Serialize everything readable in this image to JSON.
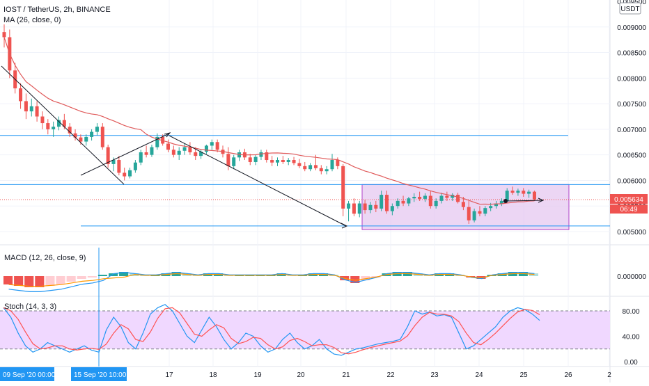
{
  "header": {
    "symbol_line": "IOST / TetherUS, 2h, BINANCE",
    "ma_line": "MA (26, close, 0)",
    "currency_badge": "USDT"
  },
  "price_axis": {
    "ticks": [
      "0.009500",
      "0.009000",
      "0.008500",
      "0.008000",
      "0.007500",
      "0.007000",
      "0.006500",
      "0.006000",
      "0.005500",
      "0.005000"
    ],
    "current_price": "0.005634",
    "countdown": "06:49"
  },
  "macd": {
    "label": "MACD (12, 26, close, 9)",
    "axis_tick": "0.000000"
  },
  "stoch": {
    "label": "Stoch (14, 3, 3)",
    "axis_ticks": [
      "80.00",
      "40.00",
      "0.00"
    ]
  },
  "time_axis": {
    "ticks": [
      "17",
      "18",
      "19",
      "20",
      "21",
      "22",
      "23",
      "24",
      "25",
      "26",
      "2"
    ],
    "cursor_labels": [
      "09 Sep '20   00:00",
      "15 Sep '20   10:00"
    ]
  },
  "colors": {
    "up": "#26a69a",
    "down": "#ef5350",
    "ma": "#e05a5a",
    "level_line": "#2196f3",
    "range_box_fill": "#e6c8f0",
    "range_box_stroke": "#b040c8",
    "stoch_band": "#f0d8ff"
  },
  "chart_data": {
    "type": "candlestick",
    "title": "IOST / TetherUS, 2h, BINANCE",
    "x_ticks": [
      "17",
      "18",
      "19",
      "20",
      "21",
      "22",
      "23",
      "24",
      "25",
      "26"
    ],
    "ylim": [
      0.0048,
      0.0095
    ],
    "horizontal_levels": [
      0.00688,
      0.00592,
      0.00511
    ],
    "range_box": {
      "from": "21",
      "to": "25",
      "low": 0.00504,
      "high": 0.00592
    },
    "candles": [
      [
        0.0089,
        0.00905,
        0.0086,
        0.0088
      ],
      [
        0.0088,
        0.00895,
        0.008,
        0.00815
      ],
      [
        0.00815,
        0.0083,
        0.0077,
        0.0078
      ],
      [
        0.0078,
        0.0079,
        0.0074,
        0.00755
      ],
      [
        0.00755,
        0.0077,
        0.0072,
        0.00735
      ],
      [
        0.00735,
        0.0076,
        0.00725,
        0.00745
      ],
      [
        0.00745,
        0.00755,
        0.00715,
        0.00725
      ],
      [
        0.00725,
        0.00735,
        0.007,
        0.00712
      ],
      [
        0.00712,
        0.0072,
        0.0069,
        0.007
      ],
      [
        0.007,
        0.00715,
        0.00685,
        0.00705
      ],
      [
        0.00705,
        0.00725,
        0.00698,
        0.00718
      ],
      [
        0.00718,
        0.0073,
        0.007,
        0.00705
      ],
      [
        0.00705,
        0.00712,
        0.00685,
        0.00692
      ],
      [
        0.00692,
        0.007,
        0.00678,
        0.00684
      ],
      [
        0.00684,
        0.0069,
        0.0067,
        0.00676
      ],
      [
        0.00676,
        0.0069,
        0.00668,
        0.00685
      ],
      [
        0.00685,
        0.007,
        0.00678,
        0.00695
      ],
      [
        0.00695,
        0.00712,
        0.00688,
        0.00705
      ],
      [
        0.00705,
        0.00712,
        0.0066,
        0.00665
      ],
      [
        0.00665,
        0.0067,
        0.00625,
        0.00632
      ],
      [
        0.00632,
        0.00645,
        0.00618,
        0.0064
      ],
      [
        0.0064,
        0.00648,
        0.0061,
        0.00615
      ],
      [
        0.00615,
        0.00625,
        0.006,
        0.00608
      ],
      [
        0.00608,
        0.00625,
        0.00604,
        0.0062
      ],
      [
        0.0062,
        0.0064,
        0.00615,
        0.00635
      ],
      [
        0.00635,
        0.0066,
        0.0063,
        0.00655
      ],
      [
        0.00655,
        0.00668,
        0.00645,
        0.0065
      ],
      [
        0.0065,
        0.0067,
        0.00646,
        0.00665
      ],
      [
        0.00665,
        0.00692,
        0.0066,
        0.00685
      ],
      [
        0.00685,
        0.0069,
        0.00668,
        0.00672
      ],
      [
        0.00672,
        0.0068,
        0.00655,
        0.0066
      ],
      [
        0.0066,
        0.00668,
        0.00645,
        0.0065
      ],
      [
        0.0065,
        0.00665,
        0.0064,
        0.00658
      ],
      [
        0.00658,
        0.00672,
        0.0065,
        0.00665
      ],
      [
        0.00665,
        0.00675,
        0.0065,
        0.00655
      ],
      [
        0.00655,
        0.00665,
        0.0064,
        0.00648
      ],
      [
        0.00648,
        0.0066,
        0.00642,
        0.00656
      ],
      [
        0.00656,
        0.0067,
        0.00652,
        0.00668
      ],
      [
        0.00668,
        0.0068,
        0.0066,
        0.00675
      ],
      [
        0.00675,
        0.0068,
        0.00655,
        0.0066
      ],
      [
        0.0066,
        0.00668,
        0.00645,
        0.00652
      ],
      [
        0.00652,
        0.00665,
        0.0062,
        0.00628
      ],
      [
        0.00628,
        0.0065,
        0.00622,
        0.00645
      ],
      [
        0.00645,
        0.0066,
        0.00638,
        0.00655
      ],
      [
        0.00655,
        0.00662,
        0.0064,
        0.00645
      ],
      [
        0.00645,
        0.00652,
        0.0063,
        0.00636
      ],
      [
        0.00636,
        0.0065,
        0.0063,
        0.00646
      ],
      [
        0.00646,
        0.0066,
        0.0064,
        0.00655
      ],
      [
        0.00655,
        0.0066,
        0.00635,
        0.0064
      ],
      [
        0.0064,
        0.00648,
        0.00628,
        0.00635
      ],
      [
        0.00635,
        0.00645,
        0.00628,
        0.0064
      ],
      [
        0.0064,
        0.00648,
        0.00632,
        0.00636
      ],
      [
        0.00636,
        0.00644,
        0.0063,
        0.0064
      ],
      [
        0.0064,
        0.00646,
        0.0063,
        0.00634
      ],
      [
        0.00634,
        0.00642,
        0.00624,
        0.00628
      ],
      [
        0.00628,
        0.00636,
        0.00618,
        0.00622
      ],
      [
        0.00622,
        0.00634,
        0.00618,
        0.0063
      ],
      [
        0.0063,
        0.0065,
        0.0062,
        0.00624
      ],
      [
        0.00624,
        0.0063,
        0.00612,
        0.00618
      ],
      [
        0.00618,
        0.00628,
        0.00612,
        0.00622
      ],
      [
        0.00622,
        0.00652,
        0.00618,
        0.0064
      ],
      [
        0.0064,
        0.00645,
        0.00622,
        0.00628
      ],
      [
        0.00628,
        0.00632,
        0.0053,
        0.00545
      ],
      [
        0.00545,
        0.0056,
        0.0052,
        0.00555
      ],
      [
        0.00555,
        0.00565,
        0.0053,
        0.00535
      ],
      [
        0.00535,
        0.0056,
        0.00528,
        0.00555
      ],
      [
        0.00555,
        0.00562,
        0.00535,
        0.00542
      ],
      [
        0.00542,
        0.00558,
        0.00536,
        0.00552
      ],
      [
        0.00552,
        0.0056,
        0.00538,
        0.00545
      ],
      [
        0.00545,
        0.0058,
        0.0054,
        0.00572
      ],
      [
        0.00572,
        0.0058,
        0.00535,
        0.0054
      ],
      [
        0.0054,
        0.00555,
        0.00532,
        0.0055
      ],
      [
        0.0055,
        0.00565,
        0.00545,
        0.0056
      ],
      [
        0.0056,
        0.0057,
        0.0055,
        0.00555
      ],
      [
        0.00555,
        0.00568,
        0.0055,
        0.00565
      ],
      [
        0.00565,
        0.00575,
        0.00558,
        0.00568
      ],
      [
        0.00568,
        0.00578,
        0.0056,
        0.00564
      ],
      [
        0.00564,
        0.00575,
        0.00558,
        0.0057
      ],
      [
        0.0057,
        0.0058,
        0.00545,
        0.0055
      ],
      [
        0.0055,
        0.00565,
        0.00545,
        0.0056
      ],
      [
        0.0056,
        0.00576,
        0.00555,
        0.0057
      ],
      [
        0.0057,
        0.00578,
        0.0056,
        0.00566
      ],
      [
        0.00566,
        0.00575,
        0.0056,
        0.00572
      ],
      [
        0.00572,
        0.00576,
        0.00555,
        0.00558
      ],
      [
        0.00558,
        0.00568,
        0.00542,
        0.00548
      ],
      [
        0.00548,
        0.0056,
        0.00515,
        0.00522
      ],
      [
        0.00522,
        0.00545,
        0.00518,
        0.0054
      ],
      [
        0.0054,
        0.0055,
        0.0053,
        0.00535
      ],
      [
        0.00535,
        0.0055,
        0.0053,
        0.00546
      ],
      [
        0.00546,
        0.00556,
        0.0054,
        0.0055
      ],
      [
        0.0055,
        0.0056,
        0.00545,
        0.00555
      ],
      [
        0.00555,
        0.00565,
        0.0055,
        0.0056
      ],
      [
        0.0056,
        0.00585,
        0.00556,
        0.0058
      ],
      [
        0.0058,
        0.00588,
        0.00572,
        0.00576
      ],
      [
        0.00576,
        0.00584,
        0.0057,
        0.0058
      ],
      [
        0.0058,
        0.00585,
        0.00568,
        0.00574
      ],
      [
        0.00574,
        0.00582,
        0.00566,
        0.00578
      ],
      [
        0.00578,
        0.0058,
        0.0056,
        0.00563
      ]
    ],
    "macd_histogram": [
      -6e-05,
      -7e-05,
      -8e-05,
      -8e-05,
      -7e-05,
      -6e-05,
      -4e-05,
      -2e-05,
      -1e-05,
      1e-05,
      2e-05,
      3e-05,
      2e-05,
      1e-05,
      1e-05,
      2e-05,
      3e-05,
      2e-05,
      1e-05,
      2e-05,
      2e-05,
      1e-05,
      1e-05,
      1e-05,
      1e-05,
      1e-05,
      2e-05,
      1e-05,
      1e-05,
      2e-05,
      2e-05,
      1e-05,
      -3e-05,
      -5e-05,
      -3e-05,
      -1e-05,
      2e-05,
      3e-05,
      3e-05,
      2e-05,
      1e-05,
      2e-05,
      2e-05,
      1e-05,
      -1e-05,
      -2e-05,
      1e-05,
      2e-05,
      3e-05,
      3e-05,
      2e-05
    ],
    "stoch_k": [
      85,
      70,
      45,
      25,
      15,
      20,
      30,
      25,
      20,
      15,
      20,
      25,
      18,
      15,
      50,
      70,
      55,
      30,
      20,
      45,
      75,
      85,
      90,
      80,
      60,
      40,
      30,
      50,
      70,
      55,
      35,
      20,
      30,
      45,
      40,
      25,
      15,
      20,
      35,
      45,
      30,
      20,
      25,
      35,
      20,
      12,
      10,
      15,
      20,
      22,
      25,
      28,
      30,
      32,
      35,
      55,
      80,
      75,
      78,
      72,
      74,
      70,
      45,
      20,
      25,
      35,
      45,
      55,
      70,
      80,
      85,
      82,
      75,
      65
    ]
  }
}
